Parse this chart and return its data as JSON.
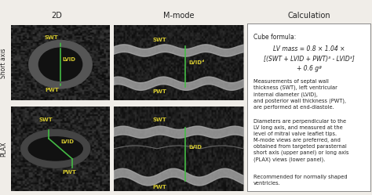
{
  "title_2d": "2D",
  "title_mmode": "M-mode",
  "title_calc": "Calculation",
  "short_axis_label": "Short axis",
  "plax_label": "PLAX",
  "calc_title": "Cube formula:",
  "formula_line1": "LV mass = 0.8 × 1.04 ×",
  "formula_line2": "[(SWT + LVID + PWT)³ - LVID³]",
  "formula_line3": "+ 0.6 gª",
  "calc_para1": "Measurements of septal wall\nthickness (SWT), left ventricular\ninternal diameter (LVID),\nand posterior wall thickness (PWT),\nare performed at end-diastole.",
  "calc_para2": "Diameters are perpendicular to the\nLV long axis, and measured at the\nlevel of mitral valve leaflet tips.\nM-mode views are preferred, and\nobtained from targeted parasternal\nshort axis (upper panel) or long axis\n(PLAX) views (lower panel).",
  "calc_para3": "Recommended for normally shaped\nventricles.",
  "bg_color": "#f0ede8",
  "panel_bg": "#c8c0b0",
  "calc_bg": "#ffffff",
  "border_color": "#888888",
  "text_color": "#222222",
  "label_color": "#d4c830",
  "line_color": "#44bb44",
  "overlay_color": "#333333",
  "fig_width": 4.74,
  "fig_height": 2.49,
  "dpi": 100
}
